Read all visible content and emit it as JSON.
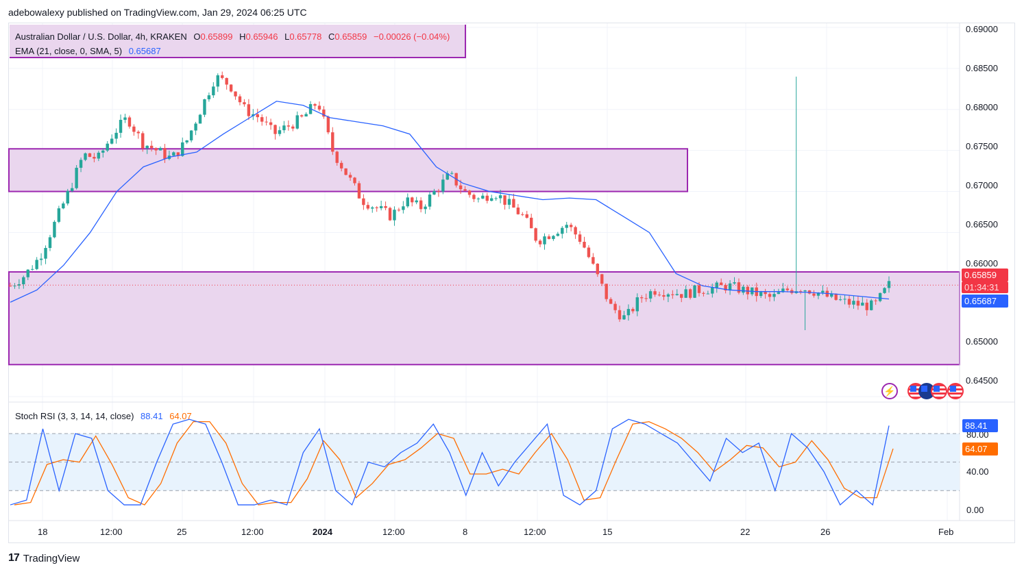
{
  "publisher": "adebowalexy published on TradingView.com, Jan 29, 2024 06:25 UTC",
  "legend": {
    "symbol": "Australian Dollar / U.S. Dollar, 4h, KRAKEN",
    "open_label": "O",
    "open": "0.65899",
    "high_label": "H",
    "high": "0.65946",
    "low_label": "L",
    "low": "0.65778",
    "close_label": "C",
    "close": "0.65859",
    "change": "−0.00026 (−0.04%)",
    "ema_title": "EMA (21, close, 0, SMA, 5)",
    "ema_value": "0.65687"
  },
  "price_axis": [
    "0.69000",
    "0.68500",
    "0.68000",
    "0.67500",
    "0.67000",
    "0.66500",
    "0.66000",
    "0.65000",
    "0.64500"
  ],
  "last_price_tag": {
    "price": "0.65859",
    "countdown": "01:34:31",
    "ema": "0.65687"
  },
  "rsi": {
    "title": "Stoch RSI (3, 3, 14, 14, close)",
    "k": "88.41",
    "d": "64.07",
    "axis": [
      "80.00",
      "40.00",
      "0.00"
    ],
    "tag_k": "88.41",
    "tag_d": "64.07"
  },
  "time_axis": [
    "18",
    "12:00",
    "25",
    "12:00",
    "2024",
    "12:00",
    "8",
    "12:00",
    "15",
    "22",
    "26",
    "Feb"
  ],
  "footer": "TradingView",
  "icons": [
    "lightning-icon",
    "us-flag-icon",
    "au-flag-icon",
    "us-flag-icon",
    "us-flag-icon"
  ],
  "colors": {
    "up": "#26a69a",
    "down": "#ef5350",
    "ema": "#2962ff",
    "zone": "#9c27b0",
    "k": "#2962ff",
    "d": "#ff6d00"
  },
  "chart_data": {
    "type": "candlestick",
    "ylim": [
      0.6445,
      0.6905
    ],
    "zones": [
      {
        "from": 0.67,
        "to": 0.6752
      },
      {
        "from": 0.6489,
        "to": 0.6602
      }
    ],
    "close_path": [
      0.6585,
      0.6598,
      0.662,
      0.666,
      0.67,
      0.6745,
      0.674,
      0.677,
      0.679,
      0.676,
      0.675,
      0.674,
      0.676,
      0.68,
      0.684,
      0.683,
      0.68,
      0.679,
      0.677,
      0.678,
      0.679,
      0.681,
      0.675,
      0.672,
      0.669,
      0.668,
      0.667,
      0.669,
      0.668,
      0.67,
      0.672,
      0.67,
      0.669,
      0.67,
      0.6685,
      0.667,
      0.664,
      0.665,
      0.666,
      0.664,
      0.66,
      0.656,
      0.6545,
      0.657,
      0.658,
      0.6578,
      0.6575,
      0.658,
      0.6582,
      0.6585,
      0.658,
      0.6575,
      0.657,
      0.658,
      0.6583,
      0.6578,
      0.657,
      0.6565,
      0.6562,
      0.656,
      0.6586
    ],
    "ema_path": [
      0.6565,
      0.658,
      0.661,
      0.665,
      0.67,
      0.673,
      0.6742,
      0.6748,
      0.677,
      0.679,
      0.681,
      0.6805,
      0.679,
      0.6785,
      0.678,
      0.677,
      0.673,
      0.671,
      0.67,
      0.6695,
      0.669,
      0.6692,
      0.669,
      0.667,
      0.665,
      0.66,
      0.6585,
      0.658,
      0.6578,
      0.6578,
      0.6577,
      0.6575,
      0.6572,
      0.6569
    ],
    "stoch_k_last": 88.41,
    "stoch_d_last": 64.07,
    "stoch_levels": [
      80,
      50,
      20
    ]
  }
}
